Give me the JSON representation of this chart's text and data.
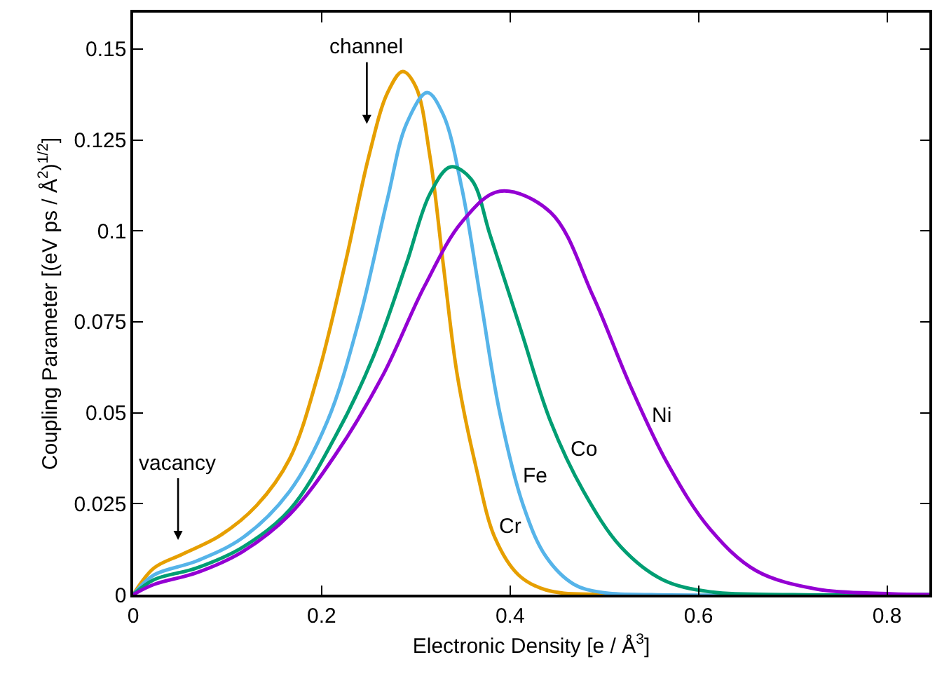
{
  "chart_data": {
    "type": "line",
    "xlabel": "Electronic Density [e / Å$^{3}$]",
    "ylabel": "Coupling Parameter [(eV ps / Å$^{2}$)$^{1/2}$]",
    "xlim": [
      0,
      0.845
    ],
    "ylim": [
      0,
      0.16
    ],
    "xticks": [
      0,
      0.2,
      0.4,
      0.6,
      0.8
    ],
    "yticks": [
      0,
      0.025,
      0.05,
      0.075,
      0.1,
      0.125,
      0.15
    ],
    "grid": false,
    "legend": false,
    "marker": "none",
    "line_style": "solid",
    "series": [
      {
        "name": "Cr",
        "color": "#e69f00",
        "x": [
          0,
          0.022,
          0.052,
          0.092,
          0.131,
          0.166,
          0.196,
          0.225,
          0.25,
          0.27,
          0.286,
          0.3,
          0.315,
          0.329,
          0.344,
          0.364,
          0.384,
          0.409,
          0.438,
          0.5,
          0.845
        ],
        "values": [
          0,
          0.0073,
          0.0111,
          0.0162,
          0.0245,
          0.0373,
          0.0603,
          0.091,
          0.1204,
          0.138,
          0.1438,
          0.1396,
          0.1204,
          0.091,
          0.0603,
          0.0349,
          0.0156,
          0.0054,
          0.0013,
          0,
          0
        ]
      },
      {
        "name": "Fe",
        "color": "#56b4e9",
        "x": [
          0,
          0.022,
          0.067,
          0.116,
          0.166,
          0.206,
          0.24,
          0.27,
          0.29,
          0.312,
          0.329,
          0.349,
          0.369,
          0.389,
          0.414,
          0.438,
          0.468,
          0.498,
          0.55,
          0.845
        ],
        "values": [
          0,
          0.0054,
          0.0092,
          0.0156,
          0.0284,
          0.0476,
          0.0757,
          0.1089,
          0.1294,
          0.138,
          0.132,
          0.1115,
          0.0808,
          0.0501,
          0.0245,
          0.0105,
          0.0028,
          0.0006,
          0,
          0
        ]
      },
      {
        "name": "Co",
        "color": "#009e73",
        "x": [
          0,
          0.022,
          0.067,
          0.116,
          0.166,
          0.215,
          0.255,
          0.29,
          0.315,
          0.337,
          0.359,
          0.379,
          0.411,
          0.443,
          0.478,
          0.518,
          0.562,
          0.612,
          0.7,
          0.845
        ],
        "values": [
          0,
          0.0041,
          0.0073,
          0.013,
          0.0233,
          0.0437,
          0.0655,
          0.091,
          0.1102,
          0.1176,
          0.1141,
          0.0987,
          0.0731,
          0.0476,
          0.0284,
          0.013,
          0.0041,
          0.0008,
          0,
          0
        ]
      },
      {
        "name": "Ni",
        "color": "#9400d3",
        "x": [
          0,
          0.022,
          0.067,
          0.116,
          0.166,
          0.215,
          0.265,
          0.309,
          0.349,
          0.389,
          0.443,
          0.488,
          0.527,
          0.567,
          0.612,
          0.661,
          0.726,
          0.8,
          0.845
        ],
        "values": [
          0,
          0.0028,
          0.006,
          0.0118,
          0.022,
          0.0386,
          0.0603,
          0.0847,
          0.1025,
          0.1109,
          0.1051,
          0.0821,
          0.0578,
          0.0361,
          0.0181,
          0.0066,
          0.0015,
          0.0003,
          0
        ]
      }
    ],
    "annotations": [
      "channel",
      "vacancy"
    ]
  }
}
